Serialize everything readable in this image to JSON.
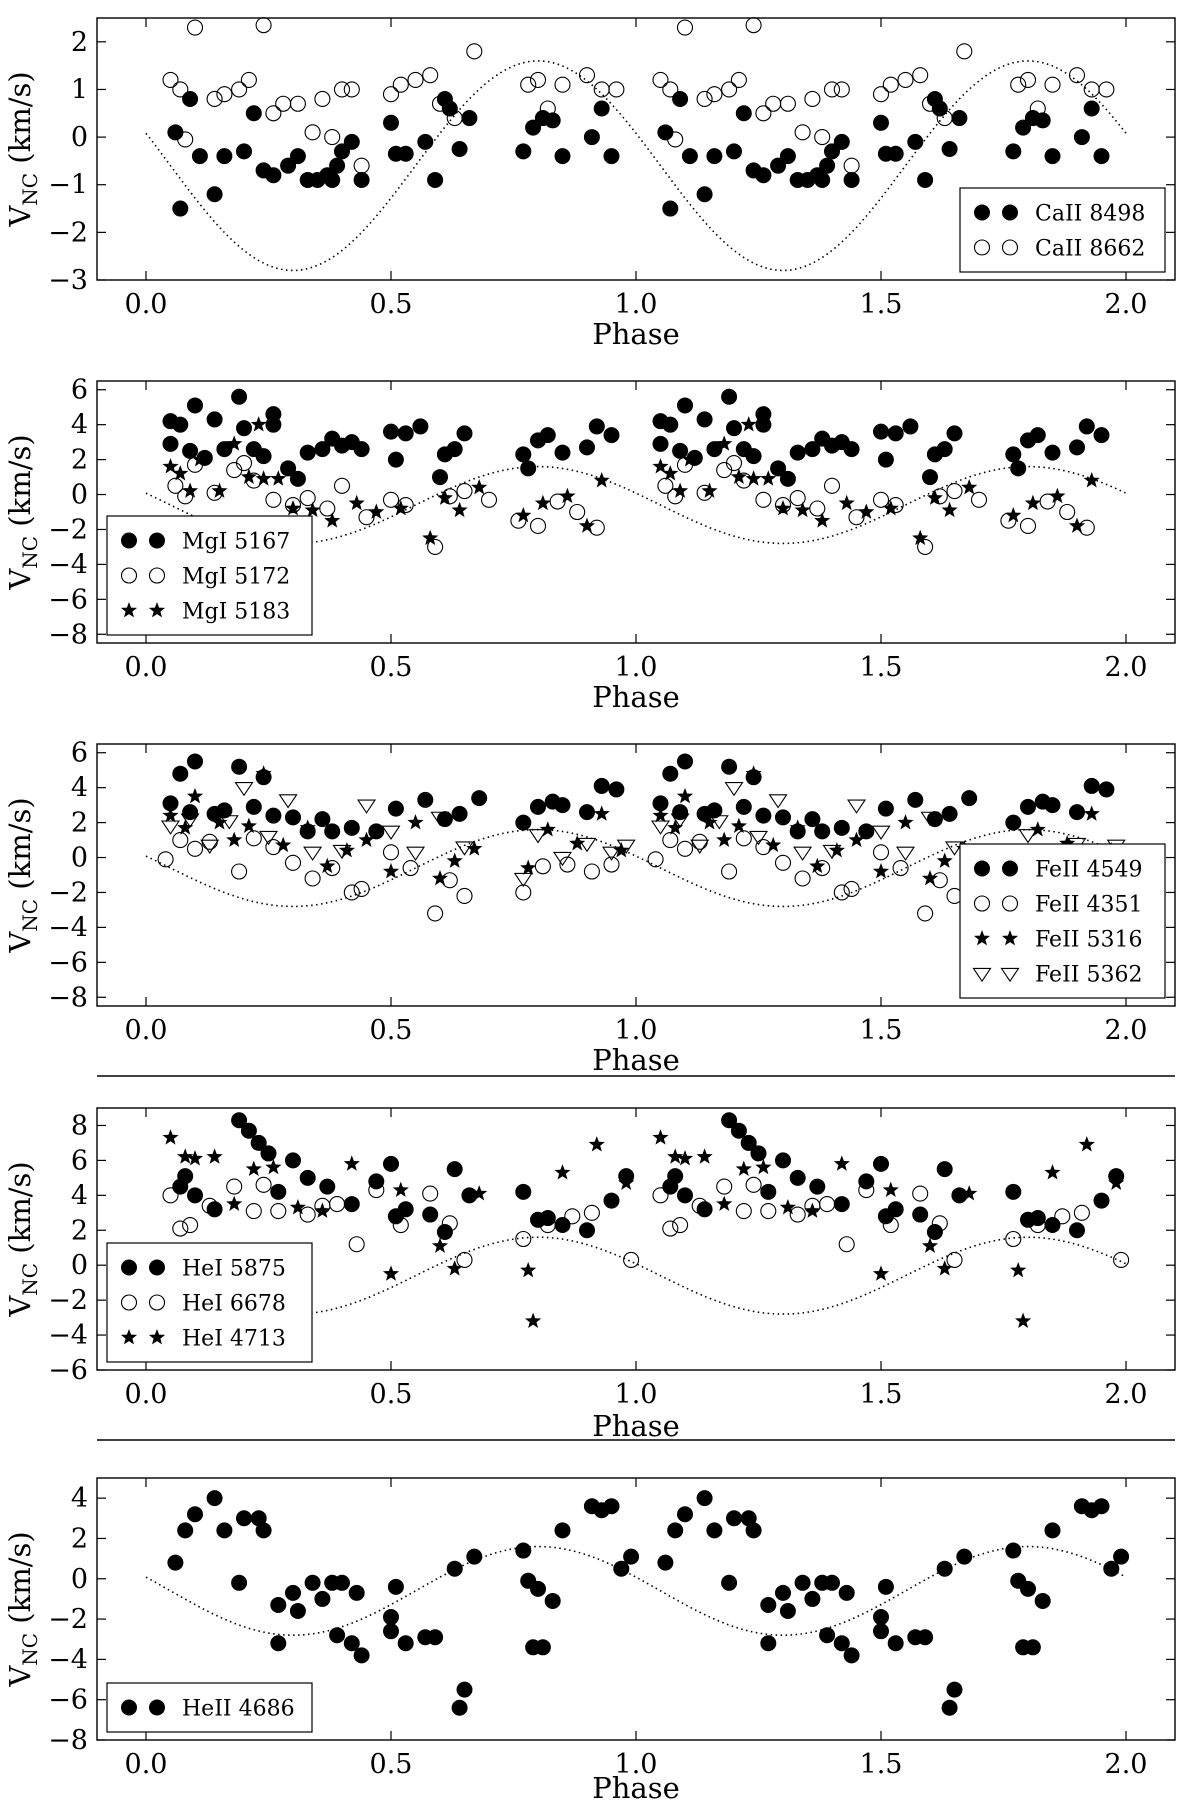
{
  "figure": {
    "separators_after_panel": [
      2,
      3
    ],
    "colors": {
      "marker": "#000000",
      "background": "#ffffff",
      "model_curve": "#000000"
    }
  },
  "chart_data": [
    {
      "type": "scatter",
      "xlabel": "Phase",
      "ylabel_main": "V",
      "ylabel_sub": "NC",
      "ylabel_unit": " (km/s)",
      "xlim": [
        -0.1,
        2.1
      ],
      "ylim": [
        -3,
        2.5
      ],
      "xticks": [
        0.0,
        0.5,
        1.0,
        1.5,
        2.0
      ],
      "xtick_labels": [
        "0.0",
        "0.5",
        "1.0",
        "1.5",
        "2.0"
      ],
      "yticks": [
        -3,
        -2,
        -1,
        0,
        1,
        2
      ],
      "ytick_labels": [
        "−3",
        "−2",
        "−1",
        "0",
        "1",
        "2"
      ],
      "legend": "bottom-right",
      "model_curve": {
        "mean": -0.6,
        "amplitude": 2.2,
        "phase_of_max": 0.8
      },
      "series": [
        {
          "name": "CaII 8498",
          "marker": "filled-circle",
          "x": [
            0.06,
            0.07,
            0.09,
            0.11,
            0.14,
            0.16,
            0.2,
            0.22,
            0.24,
            0.26,
            0.29,
            0.31,
            0.33,
            0.35,
            0.37,
            0.38,
            0.39,
            0.4,
            0.42,
            0.44,
            0.5,
            0.51,
            0.53,
            0.57,
            0.59,
            0.61,
            0.62,
            0.64,
            0.66,
            0.77,
            0.79,
            0.81,
            0.83,
            0.85,
            0.91,
            0.93,
            0.95
          ],
          "y": [
            0.1,
            -1.5,
            0.8,
            -0.4,
            -1.2,
            -0.4,
            -0.3,
            0.5,
            -0.7,
            -0.8,
            -0.6,
            -0.4,
            -0.9,
            -0.9,
            -0.8,
            -0.9,
            -0.6,
            -0.3,
            -0.1,
            -0.9,
            0.3,
            -0.35,
            -0.35,
            -0.1,
            -0.9,
            0.8,
            0.6,
            -0.25,
            0.4,
            -0.3,
            0.2,
            0.4,
            0.35,
            -0.4,
            0.0,
            0.6,
            -0.4
          ]
        },
        {
          "name": "CaII 8662",
          "marker": "open-circle",
          "x": [
            0.05,
            0.07,
            0.08,
            0.1,
            0.14,
            0.16,
            0.19,
            0.21,
            0.24,
            0.26,
            0.28,
            0.31,
            0.34,
            0.36,
            0.38,
            0.4,
            0.42,
            0.44,
            0.5,
            0.52,
            0.55,
            0.58,
            0.6,
            0.63,
            0.67,
            0.78,
            0.8,
            0.82,
            0.85,
            0.9,
            0.93,
            0.96
          ],
          "y": [
            1.2,
            1.0,
            -0.05,
            2.3,
            0.8,
            0.9,
            1.0,
            1.2,
            2.35,
            0.5,
            0.7,
            0.7,
            0.1,
            0.8,
            0.0,
            1.0,
            1.0,
            -0.6,
            0.9,
            1.1,
            1.2,
            1.3,
            0.7,
            0.4,
            1.8,
            1.1,
            1.2,
            0.6,
            1.1,
            1.3,
            1.0,
            1.0
          ]
        }
      ]
    },
    {
      "type": "scatter",
      "xlabel": "Phase",
      "ylabel_main": "V",
      "ylabel_sub": "NC",
      "ylabel_unit": " (km/s)",
      "xlim": [
        -0.1,
        2.1
      ],
      "ylim": [
        -8.5,
        6.5
      ],
      "xticks": [
        0.0,
        0.5,
        1.0,
        1.5,
        2.0
      ],
      "xtick_labels": [
        "0.0",
        "0.5",
        "1.0",
        "1.5",
        "2.0"
      ],
      "yticks": [
        -8,
        -6,
        -4,
        -2,
        0,
        2,
        4,
        6
      ],
      "ytick_labels": [
        "−8",
        "−6",
        "−4",
        "−2",
        "0",
        "2",
        "4",
        "6"
      ],
      "legend": "bottom-left",
      "model_curve": {
        "mean": -0.6,
        "amplitude": 2.2,
        "phase_of_max": 0.8
      },
      "series": [
        {
          "name": "MgI 5167",
          "marker": "filled-circle",
          "x": [
            0.05,
            0.05,
            0.07,
            0.09,
            0.1,
            0.12,
            0.14,
            0.16,
            0.19,
            0.2,
            0.22,
            0.24,
            0.26,
            0.26,
            0.29,
            0.31,
            0.33,
            0.36,
            0.38,
            0.4,
            0.42,
            0.44,
            0.5,
            0.51,
            0.53,
            0.56,
            0.6,
            0.61,
            0.63,
            0.65,
            0.77,
            0.78,
            0.8,
            0.82,
            0.85,
            0.9,
            0.92,
            0.95
          ],
          "y": [
            4.2,
            2.9,
            4.0,
            2.5,
            5.1,
            2.1,
            4.3,
            2.6,
            5.6,
            3.8,
            2.6,
            2.2,
            4.6,
            4.0,
            1.5,
            0.9,
            2.4,
            2.6,
            3.2,
            2.8,
            3.0,
            2.6,
            3.6,
            2.0,
            3.5,
            3.9,
            1.0,
            2.3,
            2.6,
            3.5,
            2.3,
            1.5,
            3.1,
            3.4,
            2.4,
            2.7,
            3.9,
            3.4
          ]
        },
        {
          "name": "MgI 5172",
          "marker": "open-circle",
          "x": [
            0.06,
            0.08,
            0.1,
            0.14,
            0.18,
            0.2,
            0.22,
            0.26,
            0.3,
            0.33,
            0.37,
            0.4,
            0.45,
            0.5,
            0.53,
            0.59,
            0.62,
            0.65,
            0.7,
            0.76,
            0.8,
            0.84,
            0.88,
            0.92
          ],
          "y": [
            0.5,
            -0.1,
            1.7,
            0.1,
            1.4,
            1.8,
            0.8,
            -0.3,
            -0.6,
            -0.2,
            -0.8,
            0.5,
            -1.3,
            -0.3,
            -0.6,
            -3.0,
            -0.1,
            0.2,
            -0.3,
            -1.5,
            -1.8,
            -0.4,
            -1.0,
            -1.9
          ]
        },
        {
          "name": "MgI 5183",
          "marker": "star",
          "x": [
            0.05,
            0.07,
            0.09,
            0.11,
            0.15,
            0.18,
            0.21,
            0.23,
            0.24,
            0.27,
            0.3,
            0.34,
            0.38,
            0.43,
            0.47,
            0.52,
            0.58,
            0.61,
            0.64,
            0.68,
            0.77,
            0.81,
            0.86,
            0.9,
            0.93
          ],
          "y": [
            1.6,
            1.2,
            0.2,
            2.0,
            0.2,
            2.9,
            1.0,
            4.0,
            0.9,
            0.9,
            -0.8,
            -0.9,
            -1.5,
            -0.5,
            -1.0,
            -0.8,
            -2.5,
            -0.2,
            -0.9,
            0.4,
            -1.2,
            -0.5,
            -0.1,
            -1.8,
            0.8
          ]
        }
      ]
    },
    {
      "type": "scatter",
      "xlabel": "Phase",
      "ylabel_main": "V",
      "ylabel_sub": "NC",
      "ylabel_unit": " (km/s)",
      "xlim": [
        -0.1,
        2.1
      ],
      "ylim": [
        -8.5,
        6.5
      ],
      "xticks": [
        0.0,
        0.5,
        1.0,
        1.5,
        2.0
      ],
      "xtick_labels": [
        "0.0",
        "0.5",
        "1.0",
        "1.5",
        "2.0"
      ],
      "yticks": [
        -8,
        -6,
        -4,
        -2,
        0,
        2,
        4,
        6
      ],
      "ytick_labels": [
        "−8",
        "−6",
        "−4",
        "−2",
        "0",
        "2",
        "4",
        "6"
      ],
      "legend": "bottom-right",
      "model_curve": {
        "mean": -0.6,
        "amplitude": 2.2,
        "phase_of_max": 0.8
      },
      "series": [
        {
          "name": "FeII 4549",
          "marker": "filled-circle",
          "x": [
            0.05,
            0.07,
            0.09,
            0.1,
            0.14,
            0.16,
            0.19,
            0.22,
            0.24,
            0.26,
            0.3,
            0.33,
            0.36,
            0.38,
            0.42,
            0.47,
            0.51,
            0.57,
            0.61,
            0.64,
            0.68,
            0.77,
            0.8,
            0.83,
            0.85,
            0.9,
            0.93,
            0.96
          ],
          "y": [
            3.1,
            4.8,
            2.6,
            5.5,
            2.5,
            2.7,
            5.2,
            2.9,
            4.6,
            2.4,
            2.3,
            1.5,
            2.2,
            1.5,
            1.7,
            1.5,
            2.8,
            3.3,
            2.2,
            2.5,
            3.4,
            2.0,
            2.9,
            3.2,
            3.0,
            2.6,
            4.1,
            3.9
          ]
        },
        {
          "name": "FeII 4351",
          "marker": "open-circle",
          "x": [
            0.04,
            0.07,
            0.1,
            0.13,
            0.19,
            0.22,
            0.26,
            0.3,
            0.34,
            0.38,
            0.42,
            0.44,
            0.5,
            0.54,
            0.59,
            0.62,
            0.65,
            0.77,
            0.81,
            0.86,
            0.91,
            0.95
          ],
          "y": [
            -0.1,
            1.0,
            0.5,
            0.9,
            -0.8,
            1.1,
            0.6,
            -0.3,
            -1.2,
            -0.6,
            -2.0,
            -1.8,
            0.3,
            -0.6,
            -3.2,
            -1.3,
            -2.2,
            -2.0,
            -0.5,
            -0.4,
            -0.8,
            -0.4
          ]
        },
        {
          "name": "FeII 5316",
          "marker": "star",
          "x": [
            0.05,
            0.08,
            0.1,
            0.15,
            0.18,
            0.21,
            0.24,
            0.28,
            0.33,
            0.37,
            0.41,
            0.45,
            0.5,
            0.55,
            0.6,
            0.63,
            0.67,
            0.78,
            0.82,
            0.88,
            0.93,
            0.97
          ],
          "y": [
            2.4,
            1.7,
            3.5,
            2.0,
            1.0,
            1.8,
            4.8,
            0.7,
            1.7,
            -0.5,
            0.4,
            1.0,
            -0.8,
            2.0,
            -1.2,
            -0.2,
            0.5,
            -0.6,
            1.6,
            0.8,
            2.5,
            0.4
          ]
        },
        {
          "name": "FeII 5362",
          "marker": "open-triangle-down",
          "x": [
            0.05,
            0.09,
            0.13,
            0.17,
            0.2,
            0.25,
            0.29,
            0.34,
            0.4,
            0.45,
            0.5,
            0.55,
            0.6,
            0.65,
            0.77,
            0.8,
            0.85,
            0.9,
            0.95,
            0.98
          ],
          "y": [
            1.8,
            2.2,
            0.7,
            2.1,
            4.0,
            1.2,
            3.3,
            0.3,
            0.4,
            3.0,
            1.5,
            0.3,
            2.3,
            0.6,
            -1.2,
            1.3,
            0.0,
            0.8,
            0.3,
            0.7
          ]
        }
      ]
    },
    {
      "type": "scatter",
      "xlabel": "Phase",
      "ylabel_main": "V",
      "ylabel_sub": "NC",
      "ylabel_unit": " (km/s)",
      "xlim": [
        -0.1,
        2.1
      ],
      "ylim": [
        -6,
        9
      ],
      "xticks": [
        0.0,
        0.5,
        1.0,
        1.5,
        2.0
      ],
      "xtick_labels": [
        "0.0",
        "0.5",
        "1.0",
        "1.5",
        "2.0"
      ],
      "yticks": [
        -6,
        -4,
        -2,
        0,
        2,
        4,
        6,
        8
      ],
      "ytick_labels": [
        "−6",
        "−4",
        "−2",
        "0",
        "2",
        "4",
        "6",
        "8"
      ],
      "legend": "bottom-left",
      "model_curve": {
        "mean": -0.6,
        "amplitude": 2.2,
        "phase_of_max": 0.8
      },
      "series": [
        {
          "name": "HeI 5875",
          "marker": "filled-circle",
          "x": [
            0.07,
            0.08,
            0.1,
            0.14,
            0.19,
            0.21,
            0.23,
            0.25,
            0.27,
            0.3,
            0.33,
            0.37,
            0.42,
            0.47,
            0.5,
            0.51,
            0.53,
            0.58,
            0.61,
            0.63,
            0.66,
            0.77,
            0.8,
            0.82,
            0.85,
            0.9,
            0.95,
            0.98
          ],
          "y": [
            4.5,
            5.1,
            4.0,
            3.2,
            8.3,
            7.7,
            7.0,
            6.4,
            4.2,
            6.0,
            5.0,
            4.5,
            3.5,
            4.8,
            5.8,
            2.8,
            3.2,
            2.9,
            1.9,
            5.5,
            4.0,
            4.2,
            2.6,
            2.7,
            2.3,
            2.0,
            3.7,
            5.1
          ]
        },
        {
          "name": "HeI 6678",
          "marker": "open-circle",
          "x": [
            0.05,
            0.07,
            0.09,
            0.13,
            0.18,
            0.22,
            0.24,
            0.27,
            0.33,
            0.36,
            0.39,
            0.43,
            0.47,
            0.52,
            0.58,
            0.62,
            0.65,
            0.77,
            0.82,
            0.87,
            0.91,
            0.99
          ],
          "y": [
            4.0,
            2.1,
            2.3,
            3.4,
            4.5,
            3.1,
            4.6,
            3.1,
            2.9,
            3.4,
            3.5,
            1.2,
            4.3,
            2.3,
            4.1,
            2.4,
            0.3,
            1.5,
            2.3,
            2.8,
            3.0,
            0.3
          ]
        },
        {
          "name": "HeI 4713",
          "marker": "star",
          "x": [
            0.05,
            0.08,
            0.1,
            0.14,
            0.18,
            0.22,
            0.26,
            0.31,
            0.36,
            0.42,
            0.5,
            0.52,
            0.6,
            0.63,
            0.68,
            0.78,
            0.79,
            0.85,
            0.92,
            0.98
          ],
          "y": [
            7.3,
            6.2,
            6.1,
            6.2,
            3.5,
            5.5,
            5.6,
            3.3,
            3.1,
            5.8,
            -0.5,
            4.3,
            1.1,
            -0.2,
            4.1,
            -0.3,
            -3.2,
            5.3,
            6.9,
            4.7
          ]
        }
      ]
    },
    {
      "type": "scatter",
      "xlabel": "Phase",
      "ylabel_main": "V",
      "ylabel_sub": "NC",
      "ylabel_unit": " (km/s)",
      "xlim": [
        -0.1,
        2.1
      ],
      "ylim": [
        -8,
        5
      ],
      "xticks": [
        0.0,
        0.5,
        1.0,
        1.5,
        2.0
      ],
      "xtick_labels": [
        "0.0",
        "0.5",
        "1.0",
        "1.5",
        "2.0"
      ],
      "yticks": [
        -8,
        -6,
        -4,
        -2,
        0,
        2,
        4
      ],
      "ytick_labels": [
        "−8",
        "−6",
        "−4",
        "−2",
        "0",
        "2",
        "4"
      ],
      "legend": "bottom-left",
      "model_curve": {
        "mean": -0.6,
        "amplitude": 2.2,
        "phase_of_max": 0.8
      },
      "series": [
        {
          "name": "HeII 4686",
          "marker": "filled-circle",
          "x": [
            0.06,
            0.08,
            0.1,
            0.14,
            0.16,
            0.19,
            0.2,
            0.23,
            0.24,
            0.27,
            0.27,
            0.3,
            0.31,
            0.34,
            0.36,
            0.38,
            0.39,
            0.4,
            0.42,
            0.43,
            0.44,
            0.5,
            0.5,
            0.51,
            0.53,
            0.57,
            0.59,
            0.63,
            0.64,
            0.65,
            0.67,
            0.77,
            0.78,
            0.79,
            0.8,
            0.81,
            0.83,
            0.85,
            0.91,
            0.93,
            0.95,
            0.97,
            0.99
          ],
          "y": [
            0.8,
            2.4,
            3.2,
            4.0,
            2.4,
            -0.2,
            3.0,
            3.0,
            2.4,
            -1.3,
            -3.2,
            -0.7,
            -1.6,
            -0.2,
            -1.0,
            -0.2,
            -2.8,
            -0.2,
            -3.2,
            -0.7,
            -3.8,
            -1.9,
            -2.6,
            -0.4,
            -3.2,
            -2.9,
            -2.9,
            0.5,
            -6.4,
            -5.5,
            1.1,
            1.4,
            -0.1,
            -3.4,
            -0.5,
            -3.4,
            -1.1,
            2.4,
            3.6,
            3.4,
            3.6,
            0.5,
            1.1
          ]
        }
      ]
    }
  ]
}
